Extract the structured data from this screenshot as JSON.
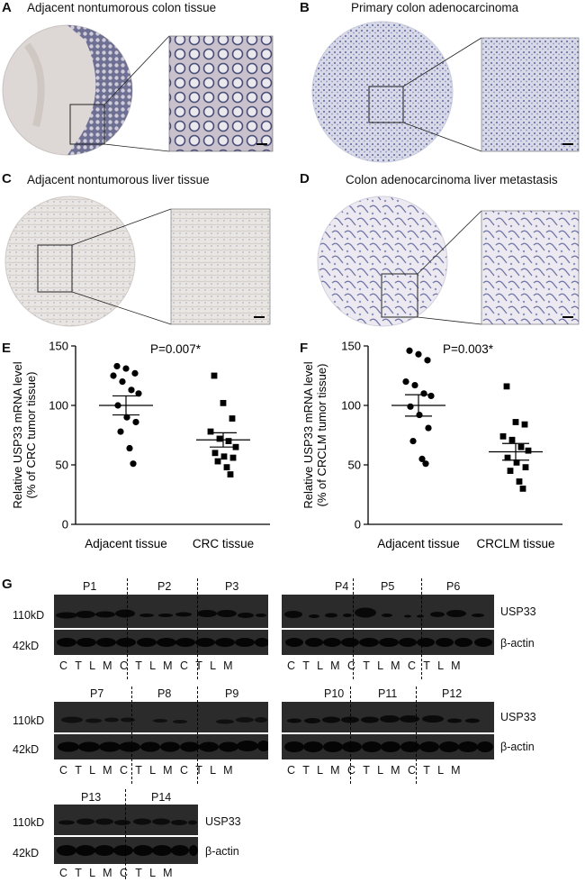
{
  "panels": {
    "A": {
      "label": "A",
      "title": "Adjacent nontumorous colon tissue"
    },
    "B": {
      "label": "B",
      "title": "Primary colon adenocarcinoma"
    },
    "C": {
      "label": "C",
      "title": "Adjacent nontumorous liver tissue"
    },
    "D": {
      "label": "D",
      "title": "Colon adenocarcinoma liver metastasis"
    },
    "E": {
      "label": "E"
    },
    "F": {
      "label": "F"
    },
    "G": {
      "label": "G"
    }
  },
  "chart_data": [
    {
      "type": "scatter",
      "panel": "E",
      "title": "P=0.007*",
      "ylabel_line1": "Relative USP33 mRNA level",
      "ylabel_line2": "(% of CRC tumor tissue)",
      "ylim": [
        0,
        150
      ],
      "yticks": [
        "0",
        "50",
        "100",
        "150"
      ],
      "categories": [
        "Adjacent tissue",
        "CRC tissue"
      ],
      "series": [
        {
          "name": "Adjacent tissue",
          "marker": "circle",
          "mean": 100,
          "sem": 8,
          "values": [
            133,
            131,
            127,
            125,
            120,
            113,
            110,
            100,
            90,
            86,
            78,
            64,
            51
          ]
        },
        {
          "name": "CRC tissue",
          "marker": "square",
          "mean": 71,
          "sem": 6,
          "values": [
            125,
            102,
            89,
            78,
            72,
            70,
            65,
            60,
            57,
            56,
            53,
            48,
            42
          ]
        }
      ]
    },
    {
      "type": "scatter",
      "panel": "F",
      "title": "P=0.003*",
      "ylabel_line1": "Relative USP33 mRNA level",
      "ylabel_line2": "(% of CRCLM tumor tissue)",
      "ylim": [
        0,
        150
      ],
      "yticks": [
        "0",
        "50",
        "100",
        "150"
      ],
      "categories": [
        "Adjacent tissue",
        "CRCLM tissue"
      ],
      "series": [
        {
          "name": "Adjacent tissue",
          "marker": "circle",
          "mean": 100,
          "sem": 9,
          "values": [
            146,
            143,
            138,
            120,
            117,
            110,
            108,
            99,
            92,
            81,
            70,
            55,
            51
          ]
        },
        {
          "name": "CRCLM tissue",
          "marker": "square",
          "mean": 61,
          "sem": 7,
          "values": [
            116,
            86,
            84,
            74,
            71,
            65,
            62,
            56,
            52,
            48,
            45,
            36,
            30
          ]
        }
      ]
    }
  ],
  "western": {
    "kd_high": "110kD",
    "kd_low": "42kD",
    "protein_top": "USP33",
    "protein_bottom": "β-actin",
    "lanes": "C T L M C T L M C T L M",
    "lanes_pair": "C T L M C T L M",
    "patients": [
      "P1",
      "P2",
      "P3",
      "P4",
      "P5",
      "P6",
      "P7",
      "P8",
      "P9",
      "P10",
      "P11",
      "P12",
      "P13",
      "P14"
    ]
  }
}
